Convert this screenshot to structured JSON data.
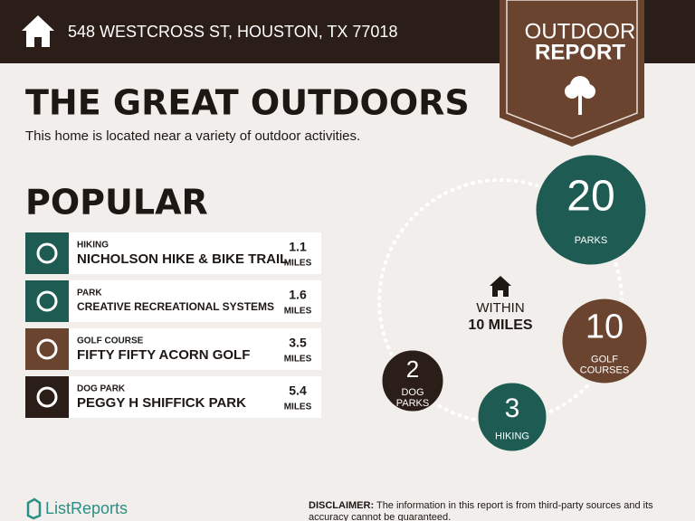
{
  "header": {
    "address": "548 WESTCROSS ST, HOUSTON, TX 77018",
    "badge": {
      "line1": "OUTDOOR",
      "line2": "REPORT"
    }
  },
  "title": "THE GREAT OUTDOORS",
  "subtitle": "This home is located near a variety of outdoor activities.",
  "popular": {
    "heading": "POPULAR",
    "items": [
      {
        "category": "HIKING",
        "name": "NICHOLSON HIKE & BIKE TRAIL",
        "distance": 1.1,
        "unit": "MILES"
      },
      {
        "category": "PARK",
        "name": "CREATIVE RECREATIONAL SYSTEMS",
        "distance": 1.6,
        "unit": "MILES"
      },
      {
        "category": "GOLF COURSE",
        "name": "FIFTY FIFTY ACORN GOLF",
        "distance": 3.5,
        "unit": "MILES"
      },
      {
        "category": "DOG PARK",
        "name": "PEGGY H SHIFFICK PARK",
        "distance": 5.4,
        "unit": "MILES"
      }
    ]
  },
  "summary": {
    "center": {
      "line1": "WITHIN",
      "line2": "10 MILES"
    },
    "counts": [
      {
        "count": 20,
        "label": [
          "PARKS"
        ]
      },
      {
        "count": 10,
        "label": [
          "GOLF",
          "COURSES"
        ]
      },
      {
        "count": 3,
        "label": [
          "HIKING"
        ]
      },
      {
        "count": 2,
        "label": [
          "DOG",
          "PARKS"
        ]
      }
    ]
  },
  "footer": {
    "brand": "ListReports",
    "disclaimer_label": "DISCLAIMER:",
    "disclaimer": [
      "The information in this report is from third-party sources and its",
      "accuracy cannot be guaranteed."
    ]
  }
}
